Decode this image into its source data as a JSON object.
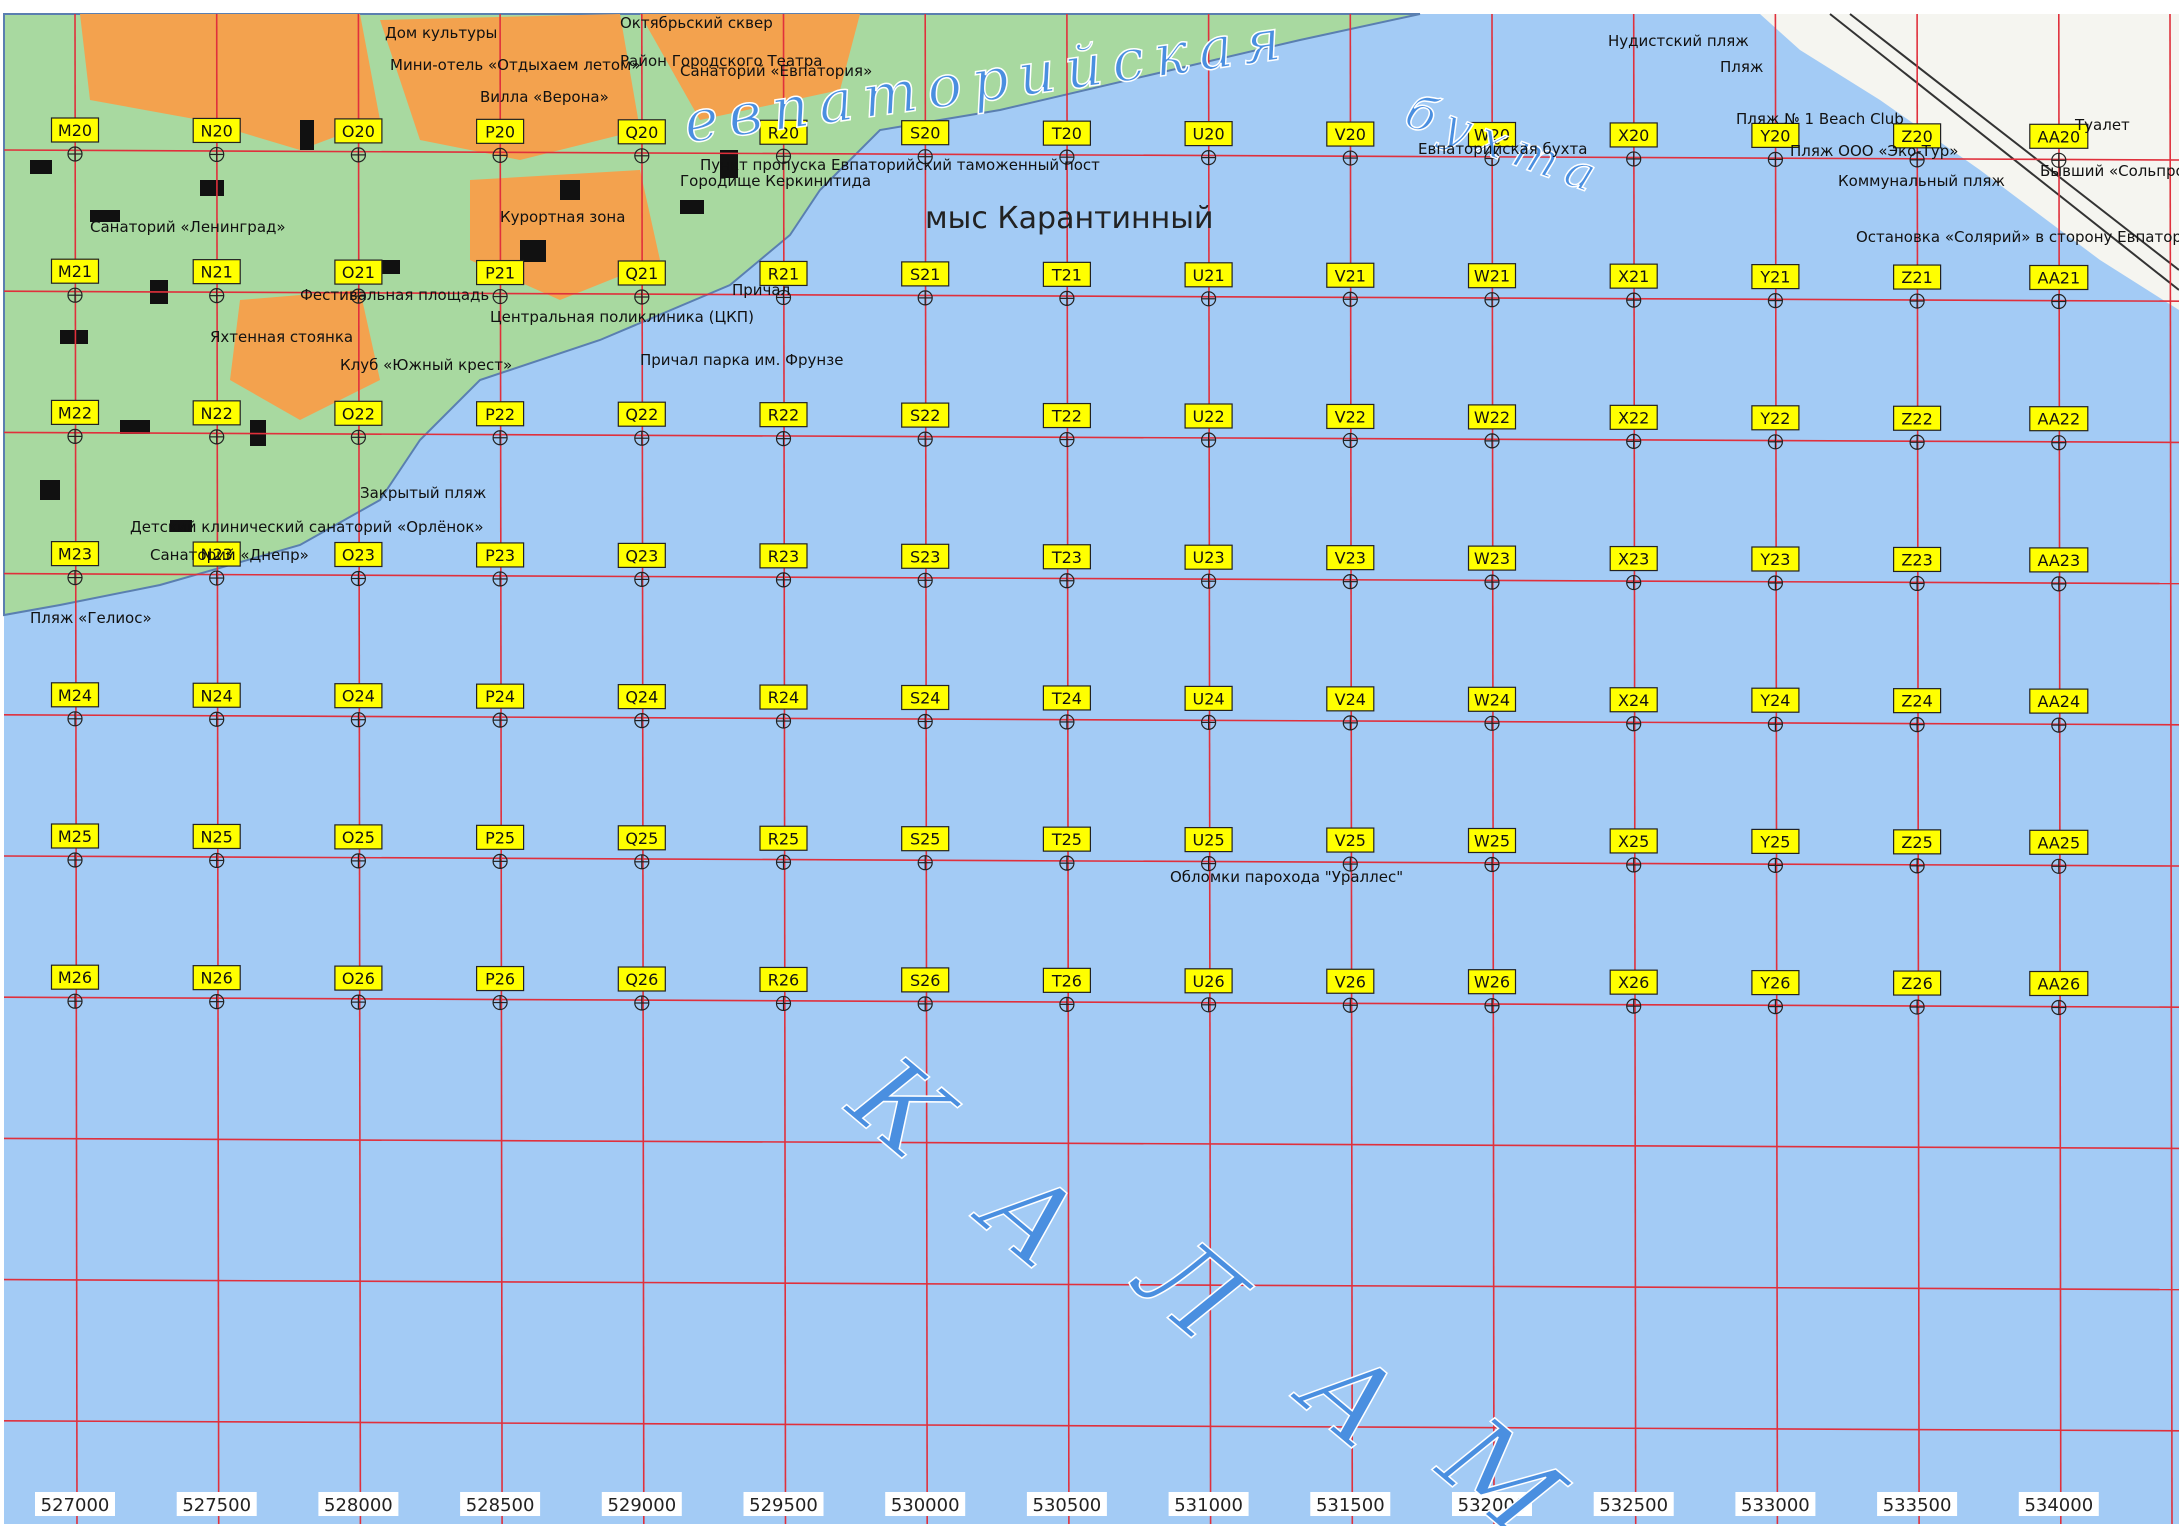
{
  "map": {
    "big_labels": [
      "евпаторийская",
      "бухта",
      "К",
      "А",
      "Л",
      "А",
      "М"
    ],
    "cape": "мыс Карантинный",
    "places": [
      "Евпаторийская бухта",
      "Обломки парохода \"Ураллес\"",
      "Пляж «Гелиос»",
      "Нудистский пляж",
      "Пляж",
      "Коммунальный пляж",
      "Пляж № 1 Beach Club",
      "Пляж ООО «Эко-Тур»",
      "Остановка «Солярий» в сторону Евпатории",
      "Бывший «Сольпром»",
      "Туалет",
      "Причал парка им. Фрунзе",
      "Клуб «Южный крест»",
      "Центральная поликлиника (ЦКП)",
      "Причал",
      "Закрытый пляж",
      "Детский клинический санаторий «Орлёнок»",
      "Санаторий «Днепр»",
      "Городище Керкинитида",
      "Пункт пропуска Евпаторийский таможенный пост",
      "Курортная зона",
      "Санаторий «Ленинград»",
      "Фестивальная площадь",
      "Яхтенная стоянка",
      "Район Городского Театра",
      "Санаторий «Евпатория»",
      "Вилла «Верона»",
      "Октябрьский сквер",
      "Дом культуры",
      "Мини-отель «Отдыхаем летом»"
    ],
    "grid": [
      [
        "M20",
        "N20",
        "O20",
        "P20",
        "Q20",
        "R20",
        "S20",
        "T20",
        "U20",
        "V20",
        "W20",
        "X20",
        "Y20",
        "Z20",
        "AA20"
      ],
      [
        "M21",
        "N21",
        "O21",
        "P21",
        "Q21",
        "R21",
        "S21",
        "T21",
        "U21",
        "V21",
        "W21",
        "X21",
        "Y21",
        "Z21",
        "AA21"
      ],
      [
        "M22",
        "N22",
        "O22",
        "P22",
        "Q22",
        "R22",
        "S22",
        "T22",
        "U22",
        "V22",
        "W22",
        "X22",
        "Y22",
        "Z22",
        "AA22"
      ],
      [
        "M23",
        "N23",
        "O23",
        "P23",
        "Q23",
        "R23",
        "S23",
        "T23",
        "U23",
        "V23",
        "W23",
        "X23",
        "Y23",
        "Z23",
        "AA23"
      ],
      [
        "M24",
        "N24",
        "O24",
        "P24",
        "Q24",
        "R24",
        "S24",
        "T24",
        "U24",
        "V24",
        "W24",
        "X24",
        "Y24",
        "Z24",
        "AA24"
      ],
      [
        "M25",
        "N25",
        "O25",
        "P25",
        "Q25",
        "R25",
        "S25",
        "T25",
        "U25",
        "V25",
        "W25",
        "X25",
        "Y25",
        "Z25",
        "AA25"
      ],
      [
        "M26",
        "N26",
        "O26",
        "P26",
        "Q26",
        "R26",
        "S26",
        "T26",
        "U26",
        "V26",
        "W26",
        "X26",
        "Y26",
        "Z26",
        "AA26"
      ]
    ],
    "eastings": [
      527000,
      527500,
      528000,
      528500,
      529000,
      529500,
      530000,
      530500,
      531000,
      531500,
      532000,
      532500,
      533000,
      533500,
      534000
    ]
  }
}
